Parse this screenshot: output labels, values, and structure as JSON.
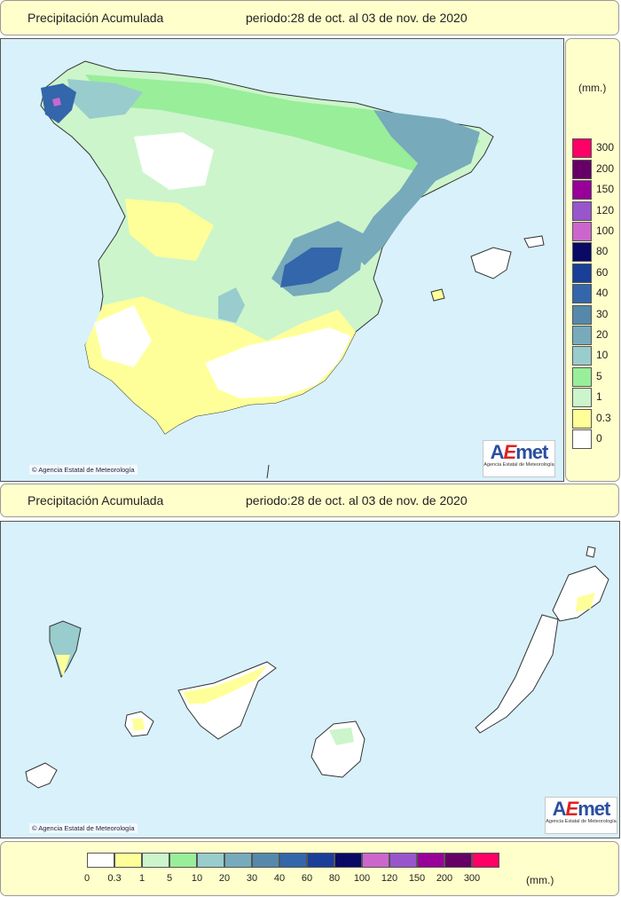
{
  "top_header": {
    "title": "Precipitación Acumulada",
    "period": "periodo:28 de oct. al 03 de nov. de 2020"
  },
  "bottom_header": {
    "title": "Precipitación Acumulada",
    "period": "periodo:28 de oct. al 03 de nov. de 2020"
  },
  "credit_top": "Agencia Estatal de Meteorología",
  "credit_bottom": "Agencia Estatal de Meteorología",
  "logo": {
    "text_a": "A",
    "text_e": "E",
    "text_rest": "met",
    "subtitle": "Agencia Estatal de Meteorología"
  },
  "legend": {
    "unit": "(mm.)",
    "bottom_unit": "(mm.)",
    "classes": [
      {
        "label": "0",
        "color": "#ffffff"
      },
      {
        "label": "0.3",
        "color": "#ffff99"
      },
      {
        "label": "1",
        "color": "#ccf5cc"
      },
      {
        "label": "5",
        "color": "#99ee99"
      },
      {
        "label": "10",
        "color": "#99cccc"
      },
      {
        "label": "20",
        "color": "#77aabb"
      },
      {
        "label": "30",
        "color": "#5588aa"
      },
      {
        "label": "40",
        "color": "#3366aa"
      },
      {
        "label": "60",
        "color": "#1a3f99"
      },
      {
        "label": "80",
        "color": "#0a0a66"
      },
      {
        "label": "100",
        "color": "#cc66cc"
      },
      {
        "label": "120",
        "color": "#9955cc"
      },
      {
        "label": "150",
        "color": "#990099"
      },
      {
        "label": "200",
        "color": "#660066"
      },
      {
        "label": "300",
        "color": "#ff0066"
      }
    ]
  },
  "map_colors": {
    "sea": "#d8f1fb",
    "border": "#999999",
    "coast": "#333333"
  }
}
